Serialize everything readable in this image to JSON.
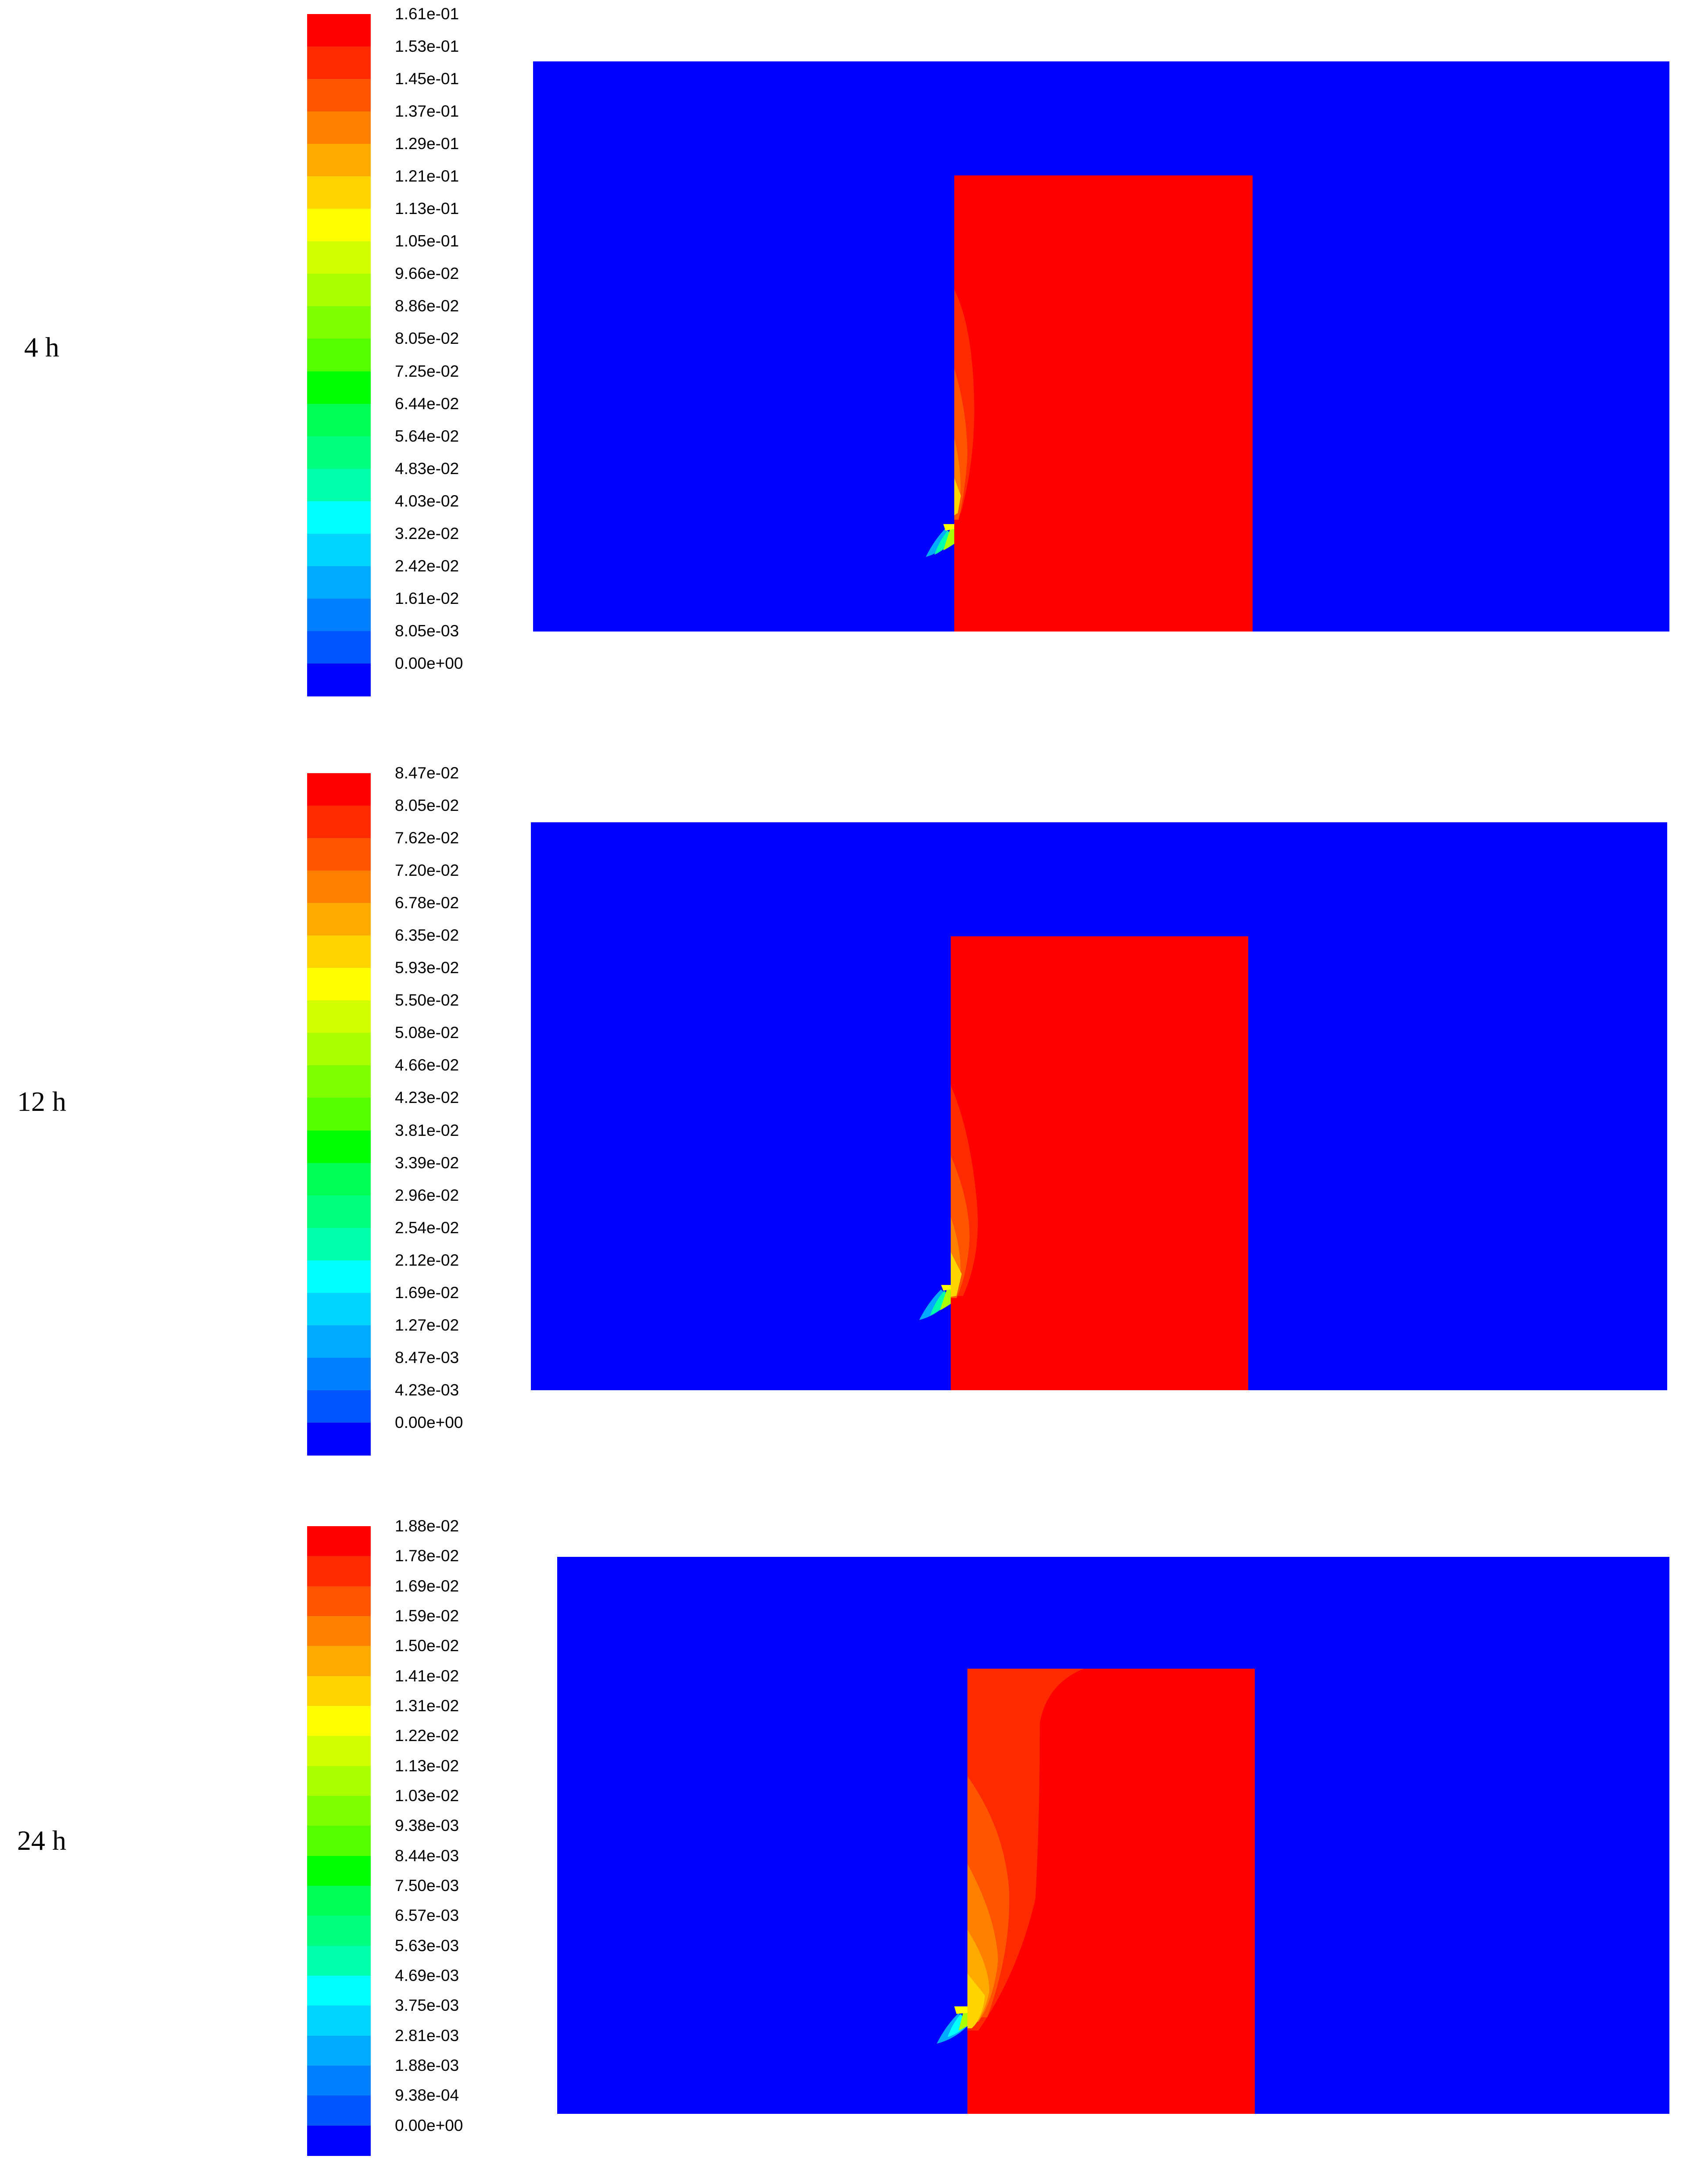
{
  "chart_data": [
    {
      "type": "heatmap",
      "time_label": "4 h",
      "colorbar_ticks": [
        "1.61e-01",
        "1.53e-01",
        "1.45e-01",
        "1.37e-01",
        "1.29e-01",
        "1.21e-01",
        "1.13e-01",
        "1.05e-01",
        "9.66e-02",
        "8.86e-02",
        "8.05e-02",
        "7.25e-02",
        "6.44e-02",
        "5.64e-02",
        "4.83e-02",
        "4.03e-02",
        "3.22e-02",
        "2.42e-02",
        "1.61e-02",
        "8.05e-03",
        "0.00e+00"
      ],
      "colorbar_max": 0.161,
      "colorbar_min": 0.0,
      "background_value": 0.0,
      "block_value": 0.161
    },
    {
      "type": "heatmap",
      "time_label": "12 h",
      "colorbar_ticks": [
        "8.47e-02",
        "8.05e-02",
        "7.62e-02",
        "7.20e-02",
        "6.78e-02",
        "6.35e-02",
        "5.93e-02",
        "5.50e-02",
        "5.08e-02",
        "4.66e-02",
        "4.23e-02",
        "3.81e-02",
        "3.39e-02",
        "2.96e-02",
        "2.54e-02",
        "2.12e-02",
        "1.69e-02",
        "1.27e-02",
        "8.47e-03",
        "4.23e-03",
        "0.00e+00"
      ],
      "colorbar_max": 0.0847,
      "colorbar_min": 0.0,
      "background_value": 0.0,
      "block_value": 0.0847
    },
    {
      "type": "heatmap",
      "time_label": "24 h",
      "colorbar_ticks": [
        "1.88e-02",
        "1.78e-02",
        "1.69e-02",
        "1.59e-02",
        "1.50e-02",
        "1.41e-02",
        "1.31e-02",
        "1.22e-02",
        "1.13e-02",
        "1.03e-02",
        "9.38e-03",
        "8.44e-03",
        "7.50e-03",
        "6.57e-03",
        "5.63e-03",
        "4.69e-03",
        "3.75e-03",
        "2.81e-03",
        "1.88e-03",
        "9.38e-04",
        "0.00e+00"
      ],
      "colorbar_max": 0.0188,
      "colorbar_min": 0.0,
      "background_value": 0.0,
      "block_value": 0.0188
    }
  ],
  "colormap": [
    "#ff0000",
    "#ff2a00",
    "#ff5500",
    "#ff7f00",
    "#ffaa00",
    "#ffd400",
    "#ffff00",
    "#d4ff00",
    "#aaff00",
    "#7fff00",
    "#55ff00",
    "#00ff00",
    "#00ff55",
    "#00ff7f",
    "#00ffaa",
    "#00ffff",
    "#00d4ff",
    "#00aaff",
    "#007fff",
    "#0055ff",
    "#0000ff"
  ]
}
